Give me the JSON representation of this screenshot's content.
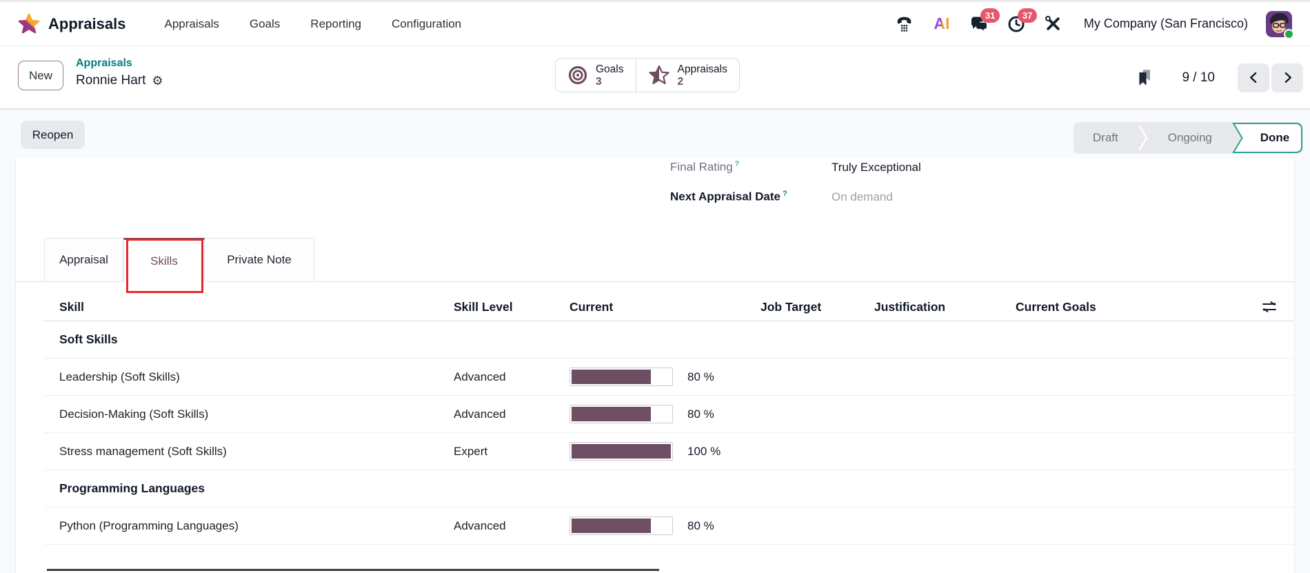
{
  "brand": {
    "app_name": "Appraisals"
  },
  "nav": {
    "items": [
      "Appraisals",
      "Goals",
      "Reporting",
      "Configuration"
    ]
  },
  "systray": {
    "ai_label": "AI",
    "messages_count": "31",
    "activities_count": "37",
    "company": "My Company (San Francisco)"
  },
  "control_panel": {
    "new_label": "New",
    "breadcrumb_parent": "Appraisals",
    "breadcrumb_current": "Ronnie Hart",
    "pager": "9 / 10"
  },
  "stat_buttons": [
    {
      "label": "Goals",
      "value": "3"
    },
    {
      "label": "Appraisals",
      "value": "2"
    }
  ],
  "status": {
    "reopen_label": "Reopen",
    "steps": [
      "Draft",
      "Ongoing",
      "Done"
    ],
    "active_step": "Done"
  },
  "fields": {
    "final_rating": {
      "label": "Final Rating",
      "help": "?",
      "value": "Truly Exceptional"
    },
    "next_appraisal_date": {
      "label": "Next Appraisal Date",
      "help": "?",
      "value": "On demand"
    }
  },
  "tabs": [
    {
      "label": "Appraisal",
      "active": false
    },
    {
      "label": "Skills",
      "active": true,
      "annotated": true
    },
    {
      "label": "Private Note",
      "active": false
    }
  ],
  "skills_table": {
    "columns": [
      "Skill",
      "Skill Level",
      "Current",
      "Job Target",
      "Justification",
      "Current Goals"
    ],
    "groups": [
      {
        "name": "Soft Skills",
        "rows": [
          {
            "skill": "Leadership (Soft Skills)",
            "level": "Advanced",
            "progress": 80,
            "progress_label": "80 %",
            "job_target": "",
            "justification": "",
            "current_goals": ""
          },
          {
            "skill": "Decision-Making (Soft Skills)",
            "level": "Advanced",
            "progress": 80,
            "progress_label": "80 %",
            "job_target": "",
            "justification": "",
            "current_goals": ""
          },
          {
            "skill": "Stress management (Soft Skills)",
            "level": "Expert",
            "progress": 100,
            "progress_label": "100 %",
            "job_target": "",
            "justification": "",
            "current_goals": ""
          }
        ]
      },
      {
        "name": "Programming Languages",
        "rows": [
          {
            "skill": "Python (Programming Languages)",
            "level": "Advanced",
            "progress": 80,
            "progress_label": "80 %",
            "job_target": "",
            "justification": "",
            "current_goals": ""
          }
        ]
      }
    ]
  },
  "icons": {
    "gear": "⚙"
  },
  "colors": {
    "primary": "#6e4b61",
    "teal": "#017e84",
    "badge_red": "#e4586b",
    "progress_fill": "#6d4e63",
    "annotation_red": "#e8262d"
  }
}
